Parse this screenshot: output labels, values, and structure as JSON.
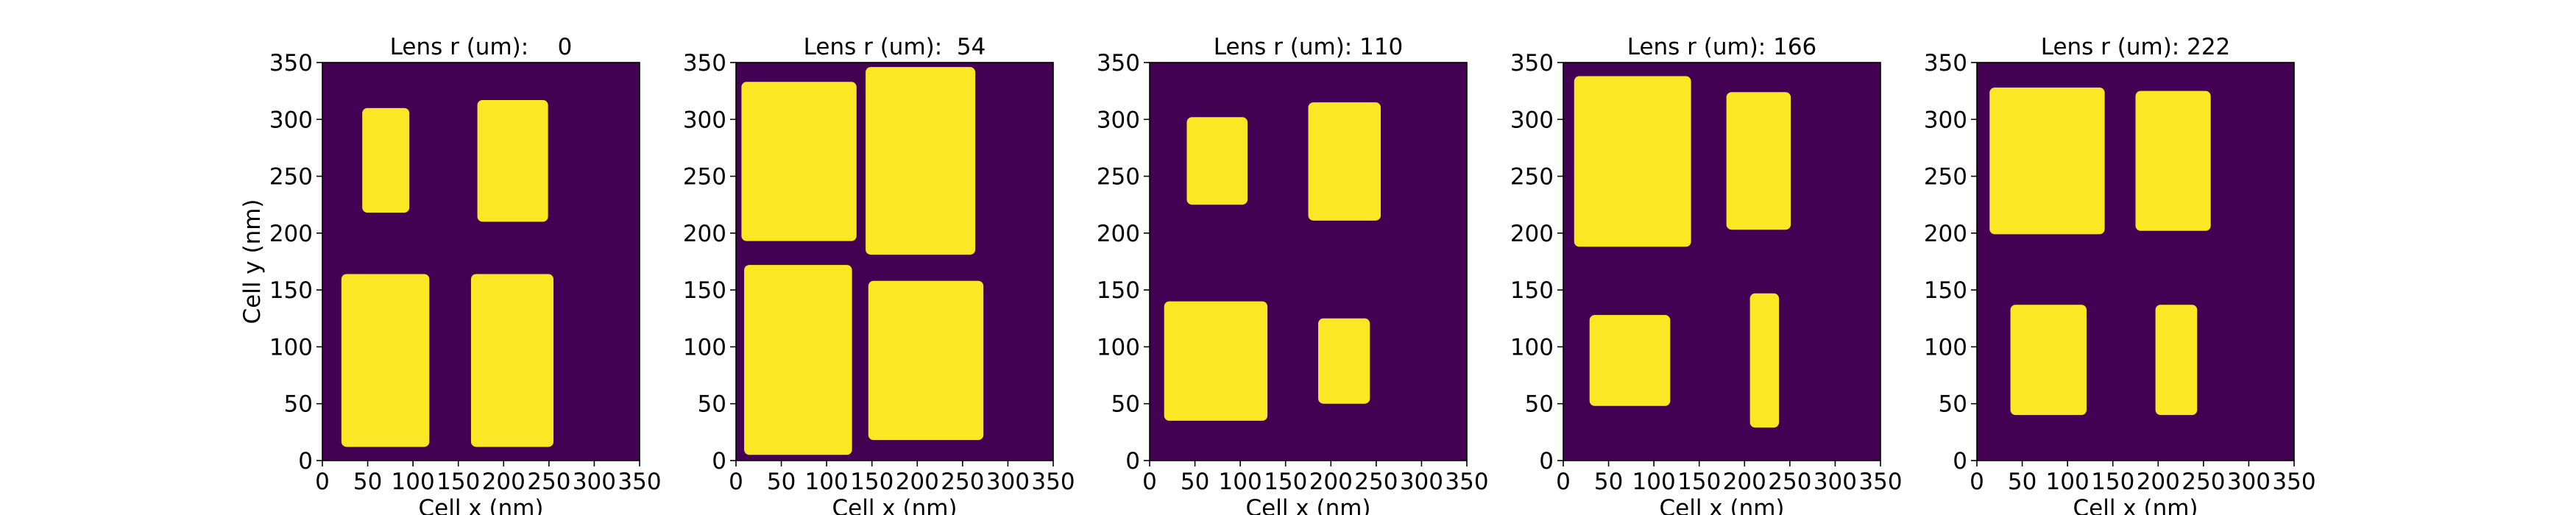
{
  "figure": {
    "background": "#ffffff",
    "plot_background": "#440154",
    "feature_color": "#fde725",
    "axis_color": "#000000"
  },
  "chart_data": [
    {
      "type": "heatmap",
      "title": "Lens r (um):    0",
      "xlabel": "Cell x (nm)",
      "ylabel": "Cell y (nm)",
      "xlim": [
        0,
        350
      ],
      "ylim": [
        0,
        350
      ],
      "xticks": [
        0,
        50,
        100,
        150,
        200,
        250,
        300,
        350
      ],
      "yticks": [
        0,
        50,
        100,
        150,
        200,
        250,
        300,
        350
      ],
      "rects": [
        {
          "x0": 44,
          "x1": 96,
          "y0": 218,
          "y1": 310
        },
        {
          "x0": 171,
          "x1": 249,
          "y0": 210,
          "y1": 317
        },
        {
          "x0": 21,
          "x1": 118,
          "y0": 12,
          "y1": 164
        },
        {
          "x0": 164,
          "x1": 255,
          "y0": 12,
          "y1": 164
        }
      ]
    },
    {
      "type": "heatmap",
      "title": "Lens r (um):  54",
      "xlabel": "Cell x (nm)",
      "ylabel": "",
      "xlim": [
        0,
        350
      ],
      "ylim": [
        0,
        350
      ],
      "xticks": [
        0,
        50,
        100,
        150,
        200,
        250,
        300,
        350
      ],
      "yticks": [
        0,
        50,
        100,
        150,
        200,
        250,
        300,
        350
      ],
      "rects": [
        {
          "x0": 6,
          "x1": 133,
          "y0": 193,
          "y1": 333
        },
        {
          "x0": 143,
          "x1": 264,
          "y0": 181,
          "y1": 346
        },
        {
          "x0": 9,
          "x1": 128,
          "y0": 5,
          "y1": 172
        },
        {
          "x0": 146,
          "x1": 273,
          "y0": 18,
          "y1": 158
        }
      ]
    },
    {
      "type": "heatmap",
      "title": "Lens r (um): 110",
      "xlabel": "Cell x (nm)",
      "ylabel": "",
      "xlim": [
        0,
        350
      ],
      "ylim": [
        0,
        350
      ],
      "xticks": [
        0,
        50,
        100,
        150,
        200,
        250,
        300,
        350
      ],
      "yticks": [
        0,
        50,
        100,
        150,
        200,
        250,
        300,
        350
      ],
      "rects": [
        {
          "x0": 41,
          "x1": 108,
          "y0": 225,
          "y1": 302
        },
        {
          "x0": 175,
          "x1": 255,
          "y0": 211,
          "y1": 315
        },
        {
          "x0": 16,
          "x1": 130,
          "y0": 35,
          "y1": 140
        },
        {
          "x0": 186,
          "x1": 243,
          "y0": 50,
          "y1": 125
        }
      ]
    },
    {
      "type": "heatmap",
      "title": "Lens r (um): 166",
      "xlabel": "Cell x (nm)",
      "ylabel": "",
      "xlim": [
        0,
        350
      ],
      "ylim": [
        0,
        350
      ],
      "xticks": [
        0,
        50,
        100,
        150,
        200,
        250,
        300,
        350
      ],
      "yticks": [
        0,
        50,
        100,
        150,
        200,
        250,
        300,
        350
      ],
      "rects": [
        {
          "x0": 12,
          "x1": 141,
          "y0": 188,
          "y1": 338
        },
        {
          "x0": 180,
          "x1": 251,
          "y0": 203,
          "y1": 324
        },
        {
          "x0": 29,
          "x1": 118,
          "y0": 48,
          "y1": 128
        },
        {
          "x0": 206,
          "x1": 238,
          "y0": 29,
          "y1": 147
        }
      ]
    },
    {
      "type": "heatmap",
      "title": "Lens r (um): 222",
      "xlabel": "Cell x (nm)",
      "ylabel": "",
      "xlim": [
        0,
        350
      ],
      "ylim": [
        0,
        350
      ],
      "xticks": [
        0,
        50,
        100,
        150,
        200,
        250,
        300,
        350
      ],
      "yticks": [
        0,
        50,
        100,
        150,
        200,
        250,
        300,
        350
      ],
      "rects": [
        {
          "x0": 14,
          "x1": 141,
          "y0": 199,
          "y1": 328
        },
        {
          "x0": 175,
          "x1": 258,
          "y0": 202,
          "y1": 325
        },
        {
          "x0": 37,
          "x1": 121,
          "y0": 40,
          "y1": 137
        },
        {
          "x0": 197,
          "x1": 243,
          "y0": 40,
          "y1": 137
        }
      ]
    }
  ]
}
